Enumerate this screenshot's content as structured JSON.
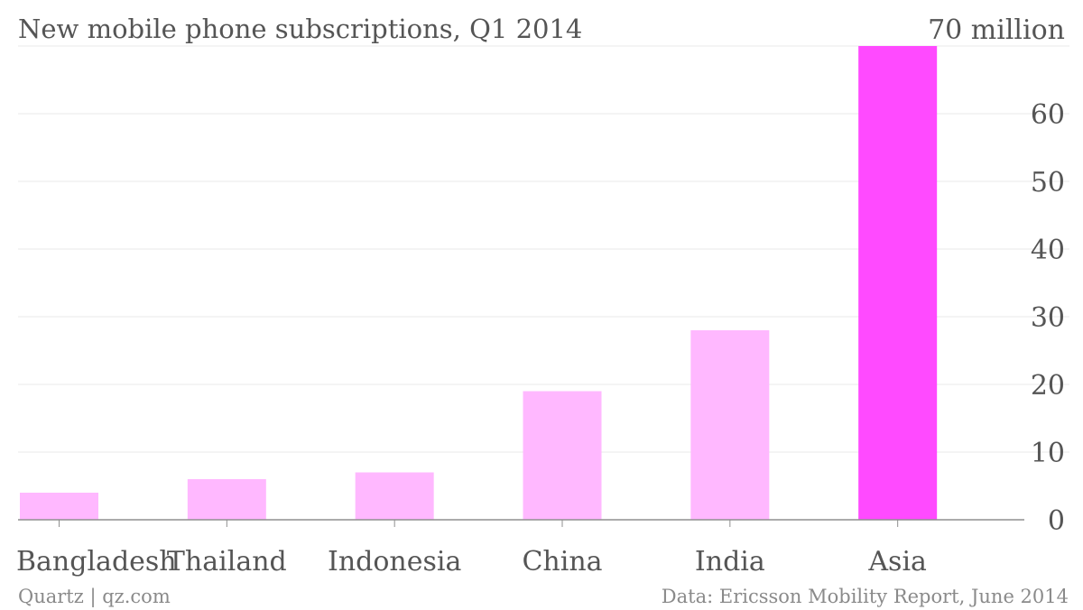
{
  "chart_data": {
    "type": "bar",
    "title": "New mobile phone subscriptions, Q1 2014",
    "categories": [
      "Bangladesh",
      "Thailand",
      "Indonesia",
      "China",
      "India",
      "Asia"
    ],
    "values": [
      4,
      6,
      7,
      19,
      28,
      70
    ],
    "y_ticks": [
      0,
      10,
      20,
      30,
      40,
      50,
      60,
      70
    ],
    "y_top_label": "70 million",
    "ylim": [
      0,
      70
    ],
    "grid": true,
    "y_axis_position": "right",
    "highlight_category": "Asia",
    "colors": {
      "bar": "#ffb8ff",
      "highlight": "#ff4aff"
    }
  },
  "footer": {
    "left": "Quartz | qz.com",
    "right": "Data: Ericsson Mobility Report, June 2014"
  }
}
